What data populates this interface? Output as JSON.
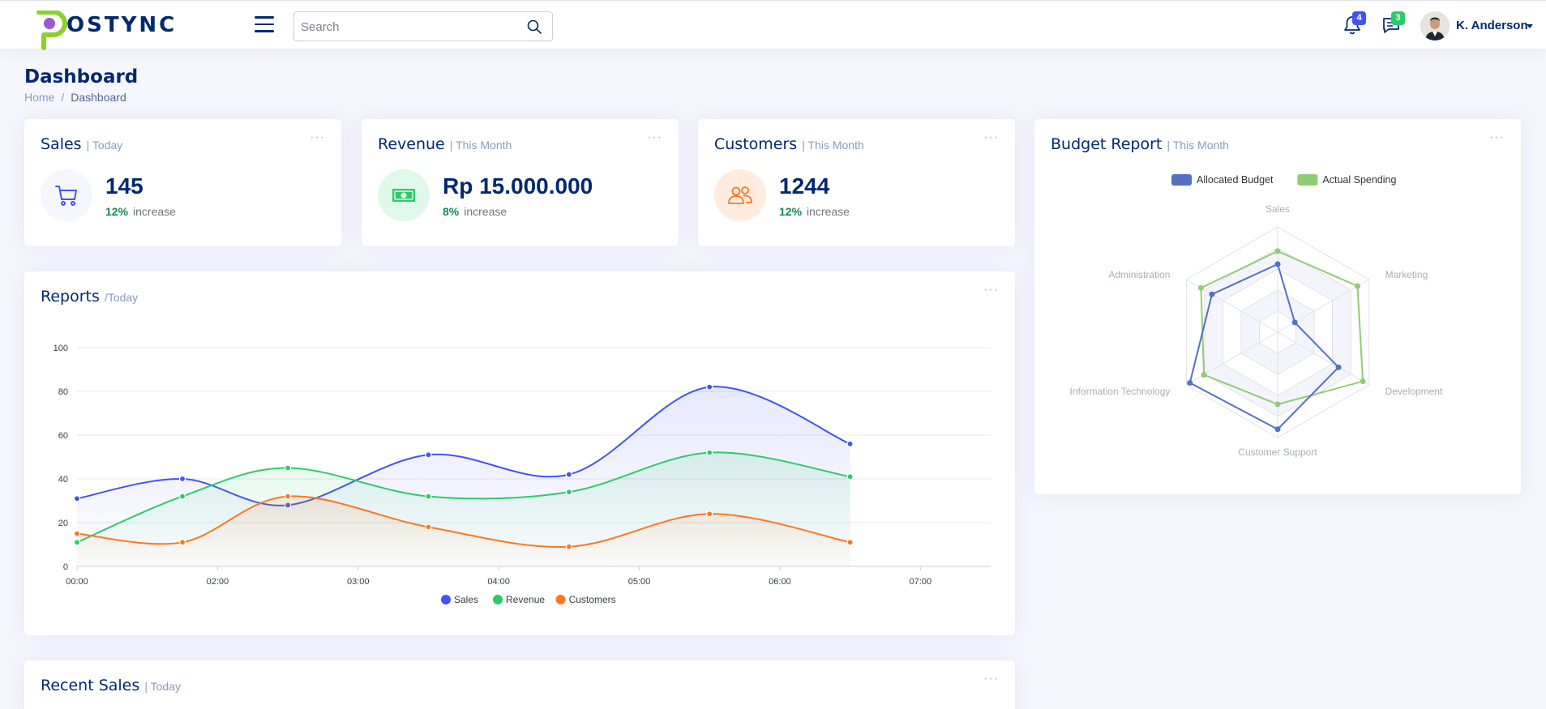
{
  "header": {
    "logo_text": "OSTYNC",
    "search_placeholder": "Search",
    "notifications_count": "4",
    "messages_count": "3",
    "username": "K. Anderson"
  },
  "page": {
    "title": "Dashboard",
    "breadcrumb": [
      "Home",
      "Dashboard"
    ]
  },
  "cards": {
    "sales": {
      "title": "Sales",
      "period": "| Today",
      "value": "145",
      "pct": "12%",
      "change_label": "increase",
      "icon": "cart-icon",
      "color": "#4154f1",
      "icon_bg": "#f6f6fe"
    },
    "revenue": {
      "title": "Revenue",
      "period": "| This Month",
      "value": "Rp 15.000.000",
      "pct": "8%",
      "change_label": "increase",
      "icon": "cash-icon",
      "color": "#2eca6a",
      "icon_bg": "#e0f8e9"
    },
    "customers": {
      "title": "Customers",
      "period": "| This Month",
      "value": "1244",
      "pct": "12%",
      "change_label": "increase",
      "icon": "people-icon",
      "color": "#ff771d",
      "icon_bg": "#ffecdf"
    }
  },
  "reports": {
    "title": "Reports",
    "period": "/Today",
    "menu": "···"
  },
  "budget": {
    "title": "Budget Report",
    "period": "| This Month"
  },
  "recent_sales": {
    "title": "Recent Sales",
    "period": "| Today"
  },
  "chart_data": [
    {
      "type": "area",
      "x_ticks": [
        "00:00",
        "02:00",
        "03:00",
        "04:00",
        "05:00",
        "06:00",
        "07:00"
      ],
      "x": [
        "00:00",
        "01:30",
        "02:30",
        "03:30",
        "04:30",
        "05:30",
        "06:30"
      ],
      "ylim": [
        0,
        100
      ],
      "y_ticks": [
        0,
        20,
        40,
        60,
        80,
        100
      ],
      "grid": true,
      "legend": "bottom",
      "series": [
        {
          "name": "Sales",
          "color": "#4154f1",
          "values": [
            31,
            40,
            28,
            51,
            42,
            82,
            56
          ]
        },
        {
          "name": "Revenue",
          "color": "#2eca6a",
          "values": [
            11,
            32,
            45,
            32,
            34,
            52,
            41
          ]
        },
        {
          "name": "Customers",
          "color": "#ff771d",
          "values": [
            15,
            11,
            32,
            18,
            9,
            24,
            11
          ]
        }
      ]
    },
    {
      "type": "radar",
      "axes": [
        "Sales",
        "Marketing",
        "Development",
        "Customer Support",
        "Information Technology",
        "Administration"
      ],
      "legend": "top",
      "series": [
        {
          "name": "Allocated Budget",
          "color": "#5470c6",
          "values": [
            4200,
            3000,
            20000,
            35000,
            50000,
            18000
          ]
        },
        {
          "name": "Actual Spending",
          "color": "#91cc75",
          "values": [
            5000,
            14000,
            28000,
            26000,
            42000,
            21000
          ]
        }
      ],
      "max": [
        6500,
        16000,
        30000,
        38000,
        52000,
        25000
      ]
    }
  ]
}
